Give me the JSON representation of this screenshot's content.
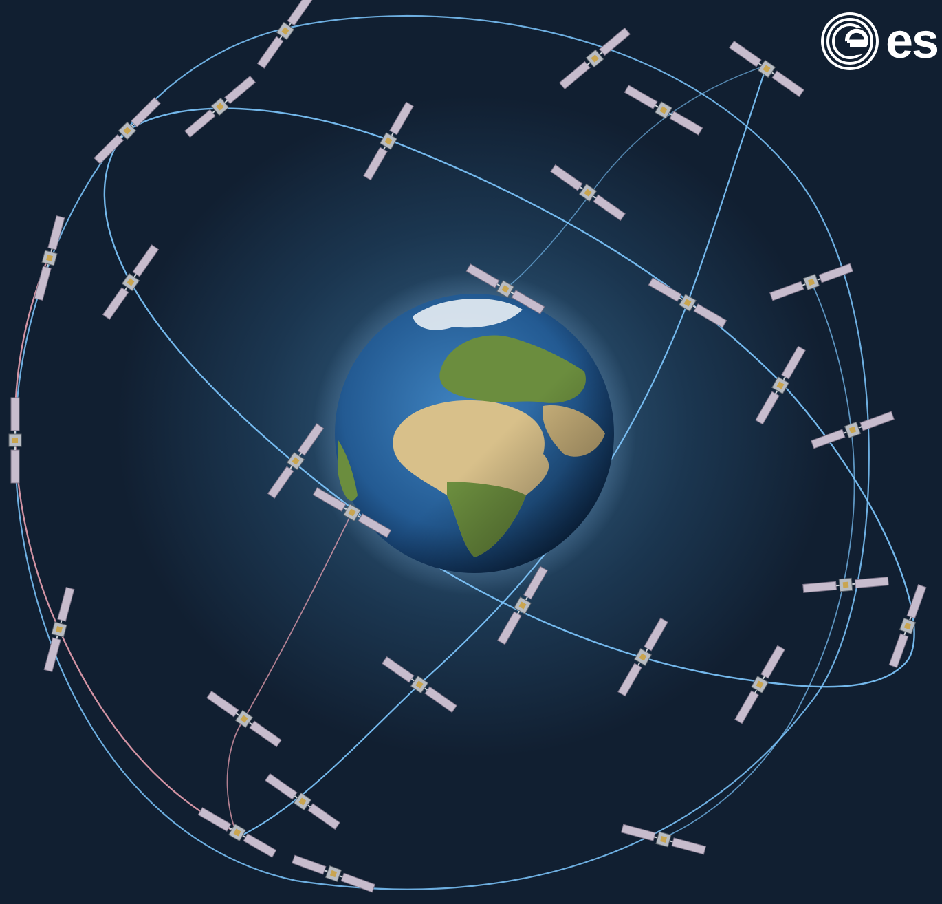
{
  "logo": {
    "text": "es",
    "color": "#ffffff"
  },
  "colors": {
    "space_dark": "#111f31",
    "orbit_blue": "#7ec8ff",
    "orbit_pink": "#e8a0b0",
    "ocean": "#2b6aa6",
    "land_green": "#6b8d3e",
    "desert": "#d8c08a",
    "solar_panel": "#c7bccd"
  },
  "satellites": [
    {
      "id": "s1"
    },
    {
      "id": "s2"
    },
    {
      "id": "s3"
    },
    {
      "id": "s4"
    },
    {
      "id": "s5"
    },
    {
      "id": "s6"
    },
    {
      "id": "s7"
    },
    {
      "id": "s8"
    },
    {
      "id": "s9"
    },
    {
      "id": "s10"
    },
    {
      "id": "s11"
    },
    {
      "id": "s12"
    },
    {
      "id": "s13"
    },
    {
      "id": "s14"
    },
    {
      "id": "s15"
    },
    {
      "id": "s16"
    },
    {
      "id": "s17"
    },
    {
      "id": "s18"
    },
    {
      "id": "s19"
    },
    {
      "id": "s20"
    },
    {
      "id": "s21"
    },
    {
      "id": "s22"
    },
    {
      "id": "s23"
    },
    {
      "id": "s24"
    },
    {
      "id": "s25"
    },
    {
      "id": "s26"
    },
    {
      "id": "s27"
    },
    {
      "id": "s28"
    },
    {
      "id": "s29"
    },
    {
      "id": "s30"
    }
  ]
}
